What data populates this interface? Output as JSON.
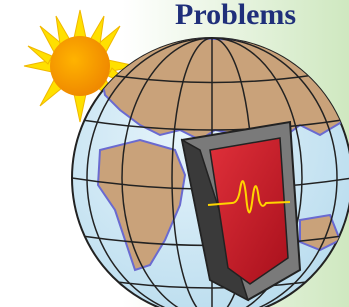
{
  "title": "Problems"
}
